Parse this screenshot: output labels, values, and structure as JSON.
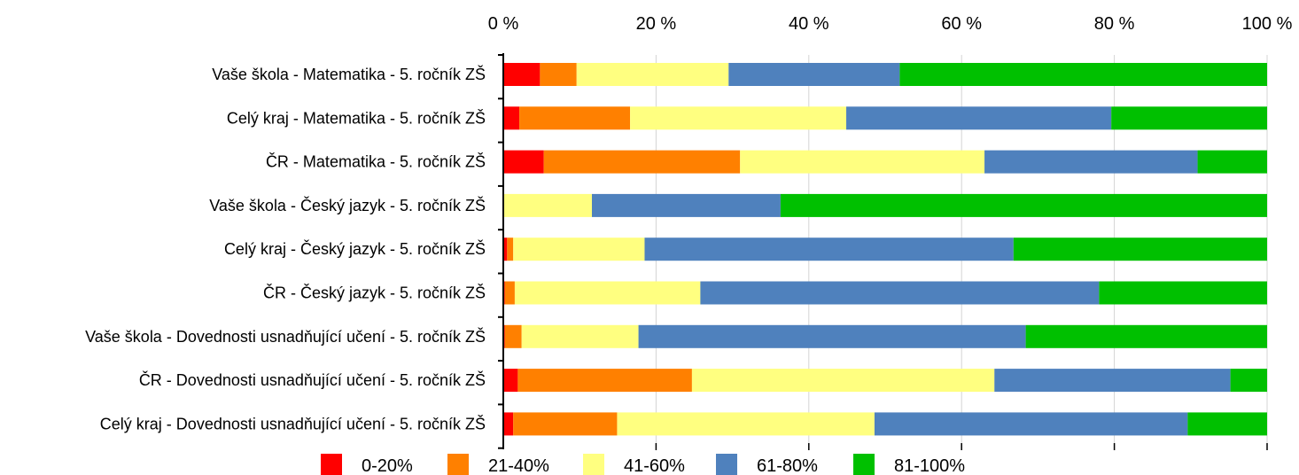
{
  "chart_data": {
    "type": "bar",
    "orientation": "horizontal",
    "stacked": true,
    "xlim": [
      0,
      100
    ],
    "x_ticks": [
      "0 %",
      "20 %",
      "40 %",
      "60 %",
      "80 %",
      "100 %"
    ],
    "x_tick_values": [
      0,
      20,
      40,
      60,
      80,
      100
    ],
    "x_tick_position": "top",
    "grid": true,
    "legend_position": "bottom",
    "categories": [
      "Vaše škola - Matematika - 5. ročník ZŠ",
      "Celý kraj - Matematika - 5. ročník ZŠ",
      "ČR - Matematika - 5. ročník ZŠ",
      "Vaše škola - Český jazyk - 5. ročník ZŠ",
      "Celý kraj - Český jazyk - 5. ročník ZŠ",
      "ČR - Český jazyk - 5. ročník ZŠ",
      "Vaše škola - Dovednosti usnadňující učení - 5. ročník ZŠ",
      "ČR - Dovednosti usnadňující učení - 5. ročník ZŠ",
      "Celý kraj - Dovednosti usnadňující učení - 5. ročník ZŠ"
    ],
    "series": [
      {
        "name": "0-20%",
        "color": "#ff0000",
        "values": [
          4.8,
          2.1,
          5.3,
          0.0,
          0.5,
          0.2,
          0.2,
          1.9,
          1.3
        ]
      },
      {
        "name": "21-40%",
        "color": "#ff8000",
        "values": [
          4.8,
          14.5,
          25.7,
          0.0,
          0.8,
          1.3,
          2.2,
          22.8,
          13.6
        ]
      },
      {
        "name": "41-60%",
        "color": "#ffff80",
        "values": [
          19.9,
          28.3,
          32.0,
          11.6,
          17.2,
          24.3,
          15.3,
          39.6,
          33.7
        ]
      },
      {
        "name": "61-80%",
        "color": "#4f81bd",
        "values": [
          22.4,
          34.7,
          27.9,
          24.7,
          48.3,
          52.2,
          50.7,
          30.9,
          41.0
        ]
      },
      {
        "name": "81-100%",
        "color": "#00c000",
        "values": [
          48.1,
          20.4,
          9.1,
          63.7,
          33.2,
          26.0,
          31.6,
          4.8,
          10.4
        ]
      }
    ]
  }
}
